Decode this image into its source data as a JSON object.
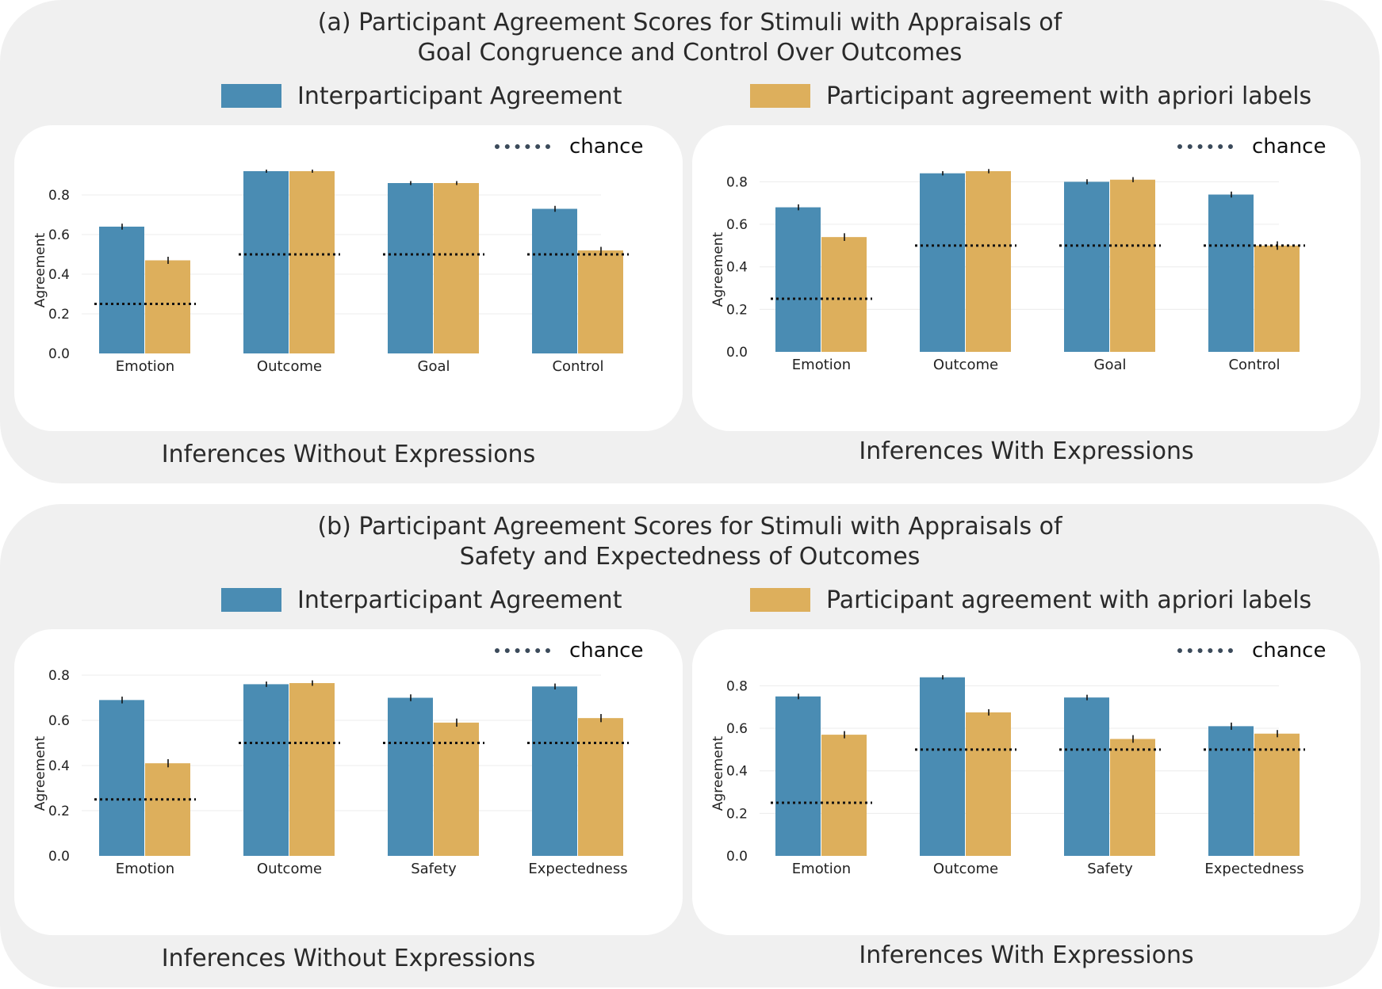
{
  "panels": [
    {
      "title_line1": "(a) Participant Agreement Scores for Stimuli with Appraisals of",
      "title_line2": "Goal Congruence and Control Over Outcomes",
      "legend": {
        "blue": "Interparticipant Agreement",
        "gold": "Participant agreement with apriori labels"
      }
    },
    {
      "title_line1": "(b) Participant Agreement Scores for Stimuli with Appraisals of",
      "title_line2": "Safety and Expectedness of Outcomes",
      "legend": {
        "blue": "Interparticipant Agreement",
        "gold": "Participant agreement with apriori labels"
      }
    }
  ],
  "chance_label": "chance",
  "subtitles": [
    "Inferences Without Expressions",
    "Inferences With Expressions",
    "Inferences Without Expressions",
    "Inferences With Expressions"
  ],
  "colors": {
    "blue": "#4a8cb3",
    "gold": "#ddaf5c",
    "chance_line": "#111111",
    "grid": "#ececec",
    "panel_bg": "#f0f0f0"
  },
  "chart_data": [
    {
      "type": "bar",
      "ylabel": "Agreement",
      "categories": [
        "Emotion",
        "Outcome",
        "Goal",
        "Control"
      ],
      "yticks": [
        "0.0",
        "0.2",
        "0.4",
        "0.6",
        "0.8"
      ],
      "ylim": [
        0,
        0.92
      ],
      "series": [
        {
          "name": "Interparticipant Agreement",
          "values": [
            0.64,
            0.92,
            0.86,
            0.73
          ],
          "errors": [
            0.015,
            0.008,
            0.01,
            0.015
          ]
        },
        {
          "name": "Participant agreement with apriori labels",
          "values": [
            0.47,
            0.92,
            0.86,
            0.52
          ],
          "errors": [
            0.018,
            0.008,
            0.01,
            0.018
          ]
        }
      ],
      "chance": [
        0.25,
        0.5,
        0.5,
        0.5
      ]
    },
    {
      "type": "bar",
      "ylabel": "Agreement",
      "categories": [
        "Emotion",
        "Outcome",
        "Goal",
        "Control"
      ],
      "yticks": [
        "0.0",
        "0.2",
        "0.4",
        "0.6",
        "0.8"
      ],
      "ylim": [
        0,
        0.85
      ],
      "series": [
        {
          "name": "Interparticipant Agreement",
          "values": [
            0.68,
            0.84,
            0.8,
            0.74
          ],
          "errors": [
            0.014,
            0.01,
            0.012,
            0.014
          ]
        },
        {
          "name": "Participant agreement with apriori labels",
          "values": [
            0.54,
            0.85,
            0.81,
            0.5
          ],
          "errors": [
            0.018,
            0.01,
            0.012,
            0.02
          ]
        }
      ],
      "chance": [
        0.25,
        0.5,
        0.5,
        0.5
      ]
    },
    {
      "type": "bar",
      "ylabel": "Agreement",
      "categories": [
        "Emotion",
        "Outcome",
        "Safety",
        "Expectedness"
      ],
      "yticks": [
        "0.0",
        "0.2",
        "0.4",
        "0.6",
        "0.8"
      ],
      "ylim": [
        0,
        0.8
      ],
      "series": [
        {
          "name": "Interparticipant Agreement",
          "values": [
            0.69,
            0.76,
            0.7,
            0.75
          ],
          "errors": [
            0.015,
            0.012,
            0.015,
            0.013
          ]
        },
        {
          "name": "Participant agreement with apriori labels",
          "values": [
            0.41,
            0.765,
            0.59,
            0.61
          ],
          "errors": [
            0.018,
            0.012,
            0.018,
            0.018
          ]
        }
      ],
      "chance": [
        0.25,
        0.5,
        0.5,
        0.5
      ]
    },
    {
      "type": "bar",
      "ylabel": "Agreement",
      "categories": [
        "Emotion",
        "Outcome",
        "Safety",
        "Expectedness"
      ],
      "yticks": [
        "0.0",
        "0.2",
        "0.4",
        "0.6",
        "0.8"
      ],
      "ylim": [
        0,
        0.85
      ],
      "series": [
        {
          "name": "Interparticipant Agreement",
          "values": [
            0.75,
            0.84,
            0.745,
            0.61
          ],
          "errors": [
            0.013,
            0.01,
            0.013,
            0.017
          ]
        },
        {
          "name": "Participant agreement with apriori labels",
          "values": [
            0.57,
            0.675,
            0.55,
            0.575
          ],
          "errors": [
            0.017,
            0.015,
            0.018,
            0.017
          ]
        }
      ],
      "chance": [
        0.25,
        0.5,
        0.5,
        0.5
      ]
    }
  ]
}
